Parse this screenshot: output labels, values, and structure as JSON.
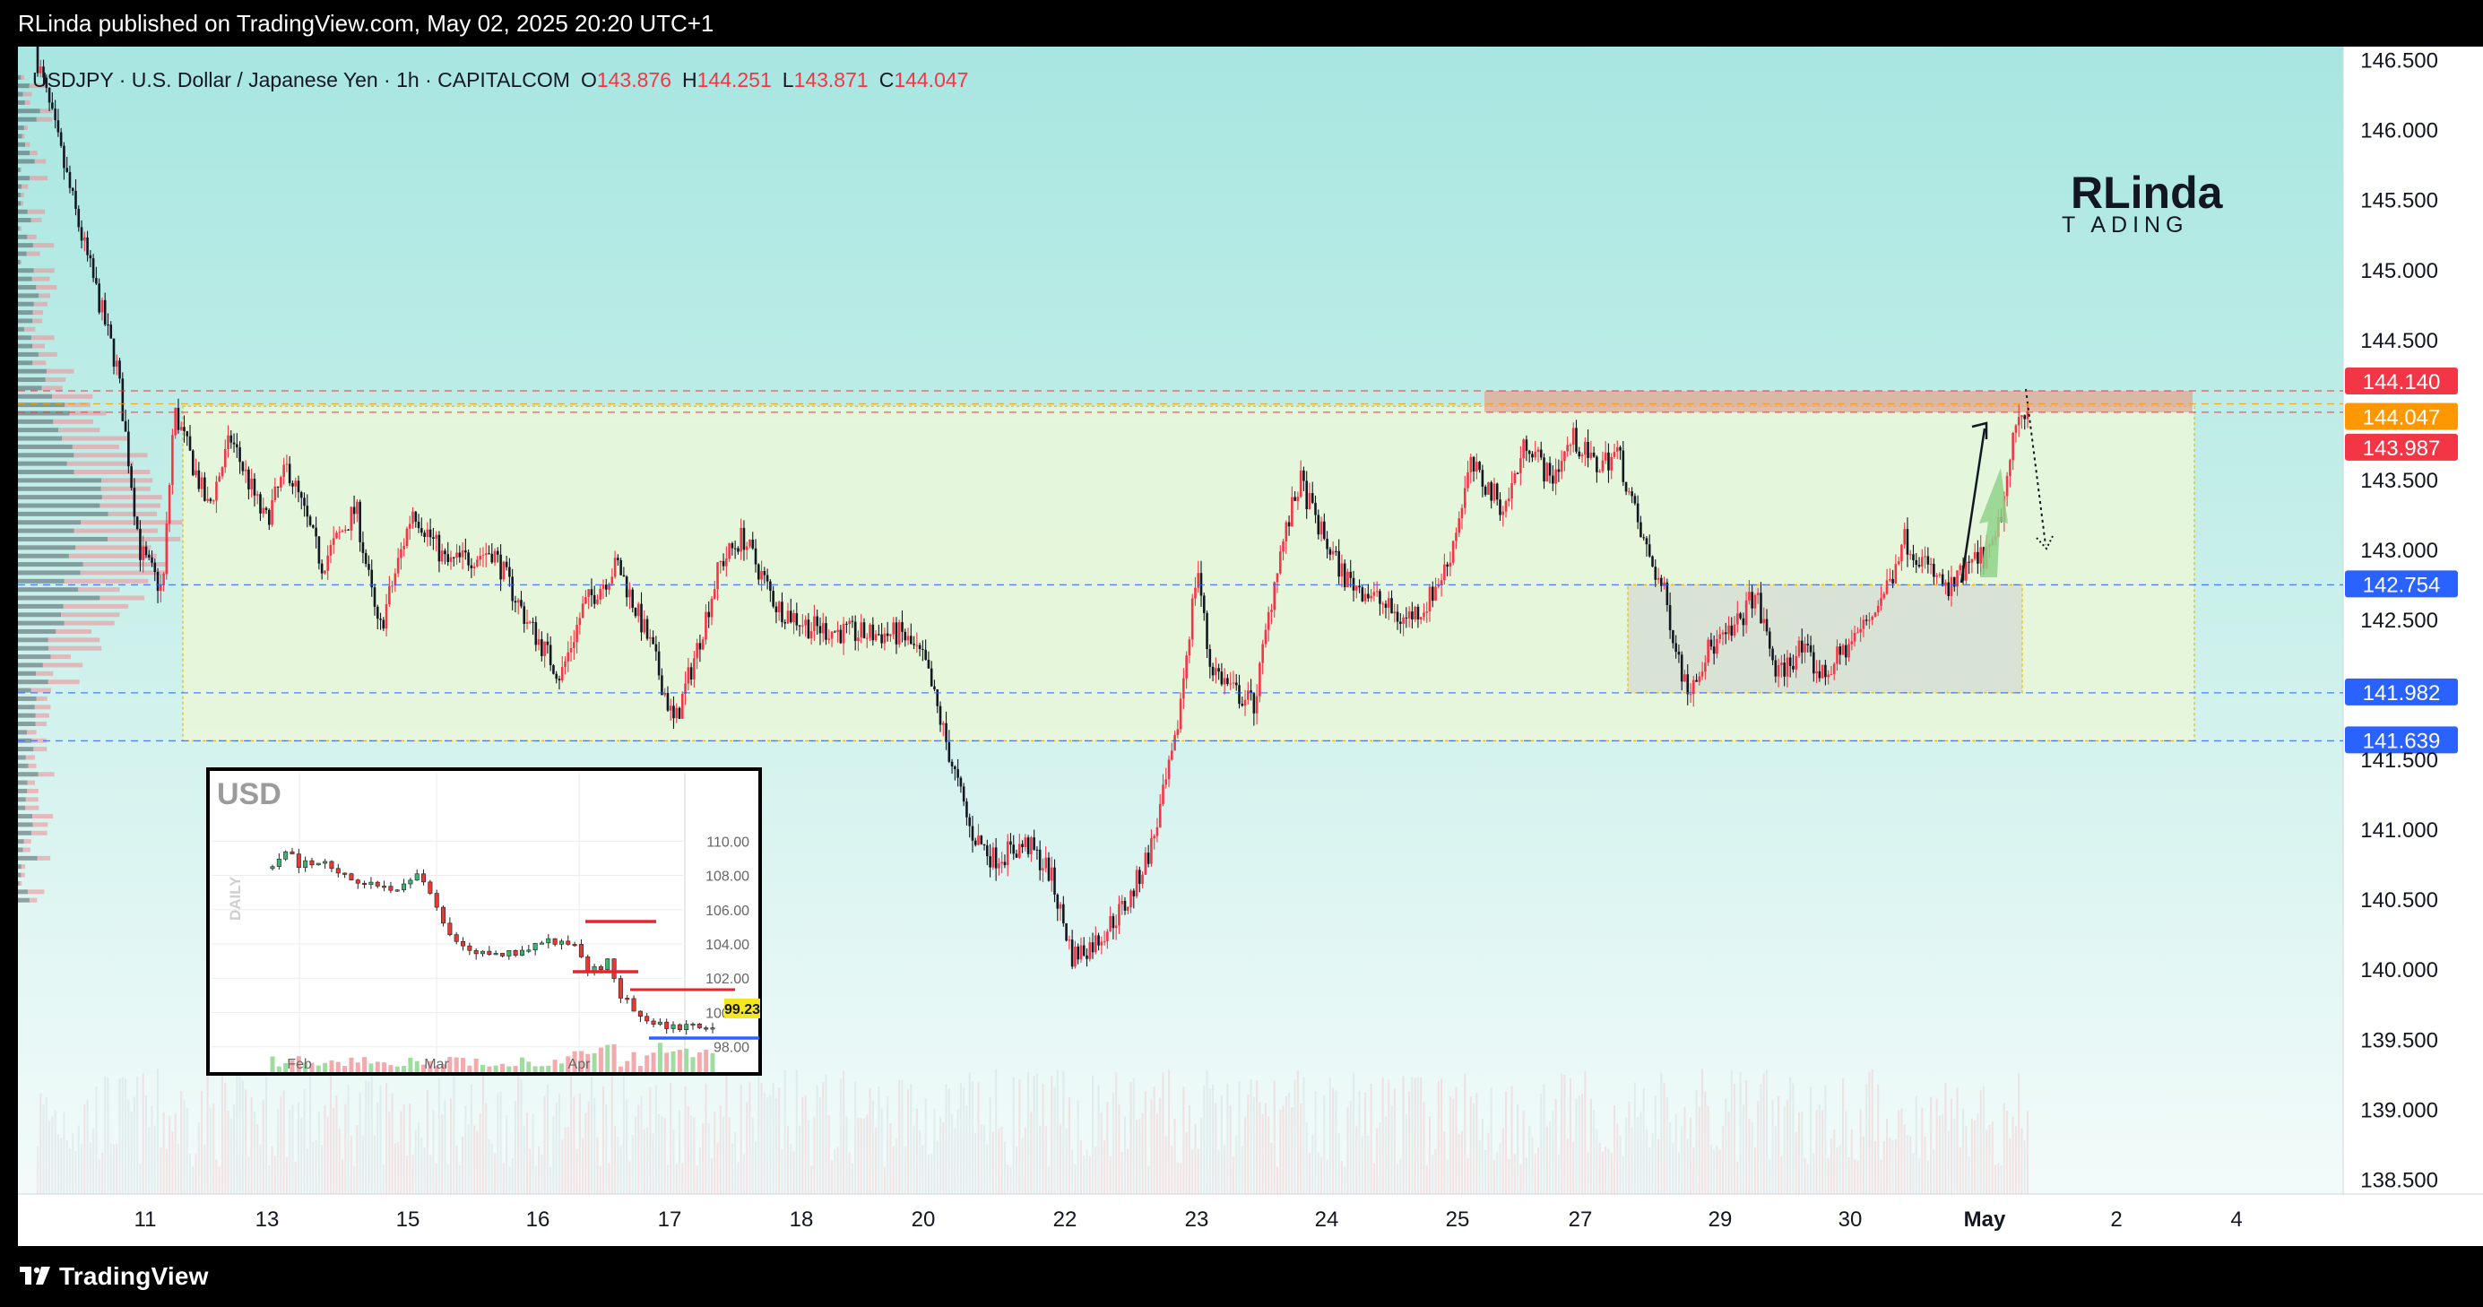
{
  "header": {
    "published_text": "RLinda published on TradingView.com, May 02, 2025 20:20 UTC+1"
  },
  "legend": {
    "symbol": "USDJPY · U.S. Dollar / Japanese Yen · 1h · CAPITALCOM",
    "o_label": "O",
    "o_value": "143.876",
    "h_label": "H",
    "h_value": "144.251",
    "l_label": "L",
    "l_value": "143.871",
    "c_label": "C",
    "c_value": "144.047"
  },
  "logo": {
    "line1": "RLinda",
    "line2": "T  ADING"
  },
  "footer": {
    "brand": "TradingView"
  },
  "colors": {
    "up": "#f23645",
    "down": "#131722",
    "accent_red": "#f23645",
    "accent_orange": "#ff9800",
    "accent_blue": "#2962ff",
    "bg_top": "#a8e6e1",
    "bg_bottom": "#f2fbfa",
    "zone_fill": "#eaf6d9"
  },
  "chart_data": [
    {
      "type": "candlestick",
      "title": "USDJPY · U.S. Dollar / Japanese Yen · 1h · CAPITALCOM",
      "ylim": [
        138.4,
        146.6
      ],
      "y_ticks": [
        "146.500",
        "146.000",
        "145.500",
        "145.000",
        "144.500",
        "143.500",
        "143.000",
        "142.500",
        "141.500",
        "141.000",
        "140.500",
        "140.000",
        "139.500",
        "139.000",
        "138.500"
      ],
      "x_ticks": [
        "11",
        "13",
        "15",
        "16",
        "17",
        "18",
        "20",
        "22",
        "23",
        "24",
        "25",
        "27",
        "29",
        "30",
        "May",
        "2",
        "4"
      ],
      "price_labels": [
        {
          "value": 144.14,
          "text": "144.140",
          "color": "#f23645"
        },
        {
          "value": 144.047,
          "text": "144.047",
          "color": "#ff9800"
        },
        {
          "value": 143.987,
          "text": "143.987",
          "color": "#f23645"
        },
        {
          "value": 142.754,
          "text": "142.754",
          "color": "#2962ff"
        },
        {
          "value": 141.982,
          "text": "141.982",
          "color": "#2962ff"
        },
        {
          "value": 141.639,
          "text": "141.639",
          "color": "#2962ff"
        }
      ],
      "path": [
        [
          0,
          146.5
        ],
        [
          4,
          145.2
        ],
        [
          7,
          144.3
        ],
        [
          9,
          143.0
        ],
        [
          11,
          142.7
        ],
        [
          12,
          144.0
        ],
        [
          15,
          143.3
        ],
        [
          17,
          143.8
        ],
        [
          20,
          143.2
        ],
        [
          22,
          143.6
        ],
        [
          25,
          142.9
        ],
        [
          28,
          143.3
        ],
        [
          30,
          142.4
        ],
        [
          33,
          143.3
        ],
        [
          36,
          142.9
        ],
        [
          40,
          143.0
        ],
        [
          43,
          142.5
        ],
        [
          46,
          142.1
        ],
        [
          48,
          142.6
        ],
        [
          51,
          142.9
        ],
        [
          54,
          142.3
        ],
        [
          56,
          141.75
        ],
        [
          58,
          142.3
        ],
        [
          60,
          142.9
        ],
        [
          62,
          143.1
        ],
        [
          65,
          142.6
        ],
        [
          68,
          142.45
        ],
        [
          72,
          142.4
        ],
        [
          76,
          142.4
        ],
        [
          78,
          142.2
        ],
        [
          80,
          141.6
        ],
        [
          82,
          141.0
        ],
        [
          84,
          140.8
        ],
        [
          87,
          140.9
        ],
        [
          89,
          140.7
        ],
        [
          91,
          140.1
        ],
        [
          93,
          140.2
        ],
        [
          96,
          140.5
        ],
        [
          98,
          140.9
        ],
        [
          100,
          141.6
        ],
        [
          102,
          142.9
        ],
        [
          103,
          142.2
        ],
        [
          105,
          142.0
        ],
        [
          107,
          141.9
        ],
        [
          109,
          142.9
        ],
        [
          111,
          143.5
        ],
        [
          113,
          143.1
        ],
        [
          115,
          142.8
        ],
        [
          117,
          142.7
        ],
        [
          120,
          142.5
        ],
        [
          122,
          142.6
        ],
        [
          124,
          142.9
        ],
        [
          126,
          143.6
        ],
        [
          129,
          143.3
        ],
        [
          131,
          143.8
        ],
        [
          133,
          143.5
        ],
        [
          135,
          143.8
        ],
        [
          137,
          143.6
        ],
        [
          139,
          143.7
        ],
        [
          141,
          143.1
        ],
        [
          143,
          142.7
        ],
        [
          145,
          142.0
        ],
        [
          147,
          142.3
        ],
        [
          149,
          142.4
        ],
        [
          151,
          142.7
        ],
        [
          153,
          142.1
        ],
        [
          155,
          142.3
        ],
        [
          157,
          142.1
        ],
        [
          159,
          142.3
        ],
        [
          161,
          142.5
        ],
        [
          163,
          142.8
        ],
        [
          164,
          143.1
        ],
        [
          166,
          142.9
        ],
        [
          168,
          142.7
        ],
        [
          170,
          142.9
        ],
        [
          172,
          143.0
        ],
        [
          173,
          143.4
        ],
        [
          174,
          143.9
        ],
        [
          175,
          144.05
        ]
      ],
      "pre_start": 146.6,
      "zones": [
        {
          "from": 143.987,
          "to": 144.14
        },
        {
          "from": 141.639,
          "to": 144.03
        },
        {
          "from": 141.982,
          "to": 142.754
        }
      ],
      "session_counts": [
        12,
        12,
        12,
        12,
        12,
        12,
        12,
        12,
        12,
        12,
        12,
        12,
        12,
        12,
        12,
        12,
        12,
        12,
        12,
        12
      ]
    },
    {
      "type": "candlestick",
      "title": "USD",
      "ylabel": "DAILY",
      "y_ticks": [
        "110.00",
        "108.00",
        "106.00",
        "104.00",
        "102.00",
        "100.00",
        "98.00"
      ],
      "ylim": [
        97.2,
        110.8
      ],
      "x_ticks": [
        "Feb",
        "Mar",
        "Apr"
      ],
      "last_value": "99.23",
      "path": [
        [
          0,
          108.4
        ],
        [
          2,
          109.5
        ],
        [
          4,
          108.7
        ],
        [
          8,
          108.9
        ],
        [
          12,
          107.7
        ],
        [
          16,
          107.3
        ],
        [
          19,
          107.2
        ],
        [
          22,
          108.0
        ],
        [
          24,
          106.8
        ],
        [
          27,
          104.5
        ],
        [
          31,
          103.5
        ],
        [
          35,
          103.3
        ],
        [
          39,
          103.8
        ],
        [
          43,
          104.2
        ],
        [
          46,
          103.9
        ],
        [
          48,
          102.2
        ],
        [
          51,
          103.0
        ],
        [
          53,
          101.0
        ],
        [
          55,
          100.2
        ],
        [
          57,
          99.6
        ],
        [
          59,
          99.5
        ],
        [
          61,
          99.1
        ],
        [
          64,
          99.4
        ],
        [
          67,
          99.23
        ]
      ]
    }
  ]
}
